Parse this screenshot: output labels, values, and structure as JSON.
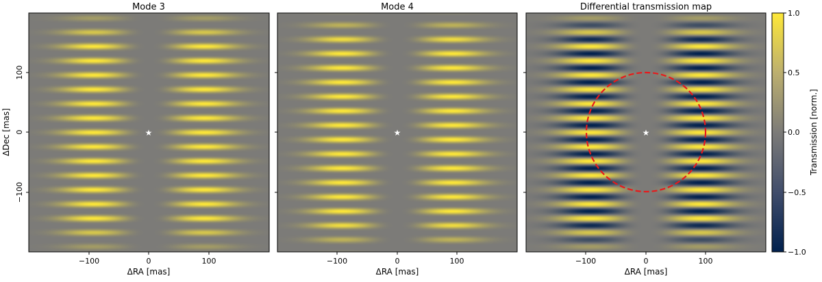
{
  "panels": [
    {
      "title": "Mode 3",
      "xlabel": "ΔRA [mas]",
      "ylabel": "ΔDec [mas]",
      "xticks": [
        "−100",
        "0",
        "100"
      ],
      "yticks": [
        "100",
        "0",
        "−100"
      ],
      "show_yticklabels": true
    },
    {
      "title": "Mode 4",
      "xlabel": "ΔRA [mas]",
      "ylabel": "",
      "xticks": [
        "−100",
        "0",
        "100"
      ],
      "yticks": [
        "",
        "",
        ""
      ],
      "show_yticklabels": false
    },
    {
      "title": "Differential transmission map",
      "xlabel": "ΔRA [mas]",
      "ylabel": "",
      "xticks": [
        "−100",
        "0",
        "100"
      ],
      "yticks": [
        "",
        "",
        ""
      ],
      "show_yticklabels": false
    }
  ],
  "colorbar": {
    "label": "Transmission [norm.]",
    "ticks": [
      "1.0",
      "0.5",
      "0.0",
      "−0.5",
      "−1.0"
    ],
    "colormap": "cividis",
    "colors": {
      "neg": "#00204d",
      "mid": "#7c7b78",
      "pos": "#fee838"
    }
  },
  "overlay": {
    "star_marker": "white-star",
    "circle_color": "#e8191b",
    "circle_style": "dashed"
  },
  "chart_data": [
    {
      "type": "heatmap",
      "title": "Mode 3",
      "xlim": [
        -200,
        200
      ],
      "ylim": [
        -200,
        200
      ],
      "x_tick_values": [
        -100,
        0,
        100
      ],
      "y_tick_values": [
        -100,
        0,
        100
      ],
      "lobe_columns_x": [
        -92,
        92
      ],
      "fringe_spacing_y": 24,
      "value_range": [
        0,
        1
      ],
      "star": [
        0,
        0
      ]
    },
    {
      "type": "heatmap",
      "title": "Mode 4",
      "xlim": [
        -200,
        200
      ],
      "ylim": [
        -200,
        200
      ],
      "x_tick_values": [
        -100,
        0,
        100
      ],
      "y_tick_values": [
        -100,
        0,
        100
      ],
      "lobe_columns_x": [
        -92,
        92
      ],
      "fringe_spacing_y": 24,
      "phase_shift": 0.5,
      "value_range": [
        0,
        1
      ],
      "star": [
        0,
        0
      ]
    },
    {
      "type": "heatmap",
      "title": "Differential transmission map",
      "xlim": [
        -200,
        200
      ],
      "ylim": [
        -200,
        200
      ],
      "x_tick_values": [
        -100,
        0,
        100
      ],
      "y_tick_values": [
        -100,
        0,
        100
      ],
      "lobe_columns_x": [
        -92,
        92
      ],
      "fringe_spacing_y": 24,
      "value_range": [
        -1,
        1
      ],
      "circle_radius": 100,
      "star": [
        0,
        0
      ],
      "colorbar_range": [
        -1,
        1
      ]
    }
  ]
}
